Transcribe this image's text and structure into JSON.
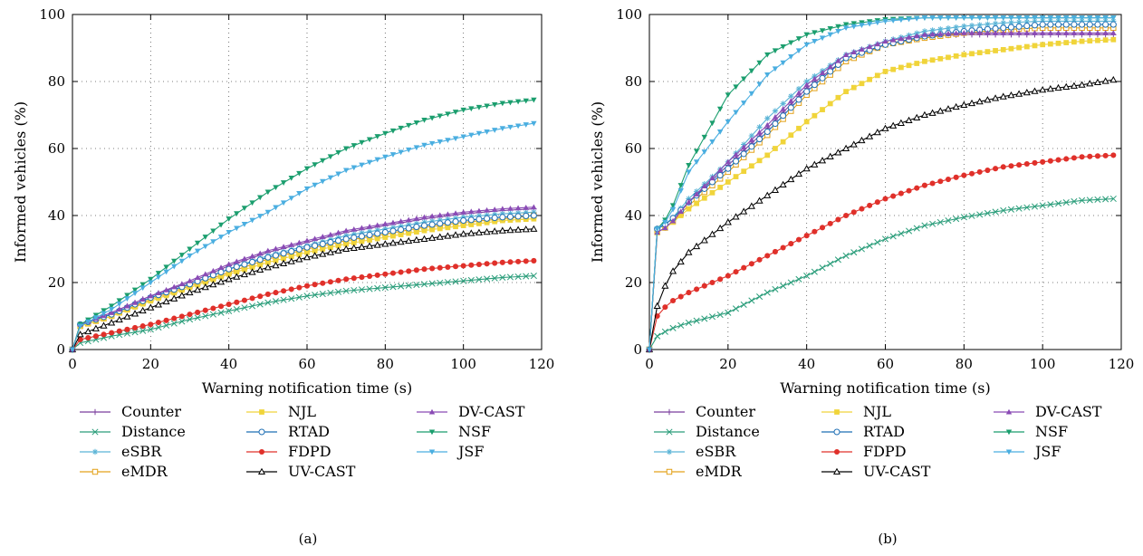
{
  "chart_data": [
    {
      "type": "line",
      "caption": "(a)",
      "xlabel": "Warning notification time (s)",
      "ylabel": "Informed vehicles (%)",
      "xlim": [
        0,
        120
      ],
      "ylim": [
        0,
        100
      ],
      "xticks": [
        0,
        20,
        40,
        60,
        80,
        100,
        120
      ],
      "yticks": [
        0,
        20,
        40,
        60,
        80,
        100
      ],
      "grid": true,
      "legend": "below",
      "x": [
        0,
        2,
        10,
        20,
        30,
        40,
        50,
        60,
        70,
        80,
        90,
        100,
        110,
        118
      ],
      "series": [
        {
          "name": "Counter",
          "color": "#7b3f9e",
          "marker": "plus",
          "values": [
            0,
            7.5,
            11,
            16,
            20,
            25,
            29,
            32,
            35,
            37,
            39,
            40.5,
            41.5,
            42
          ]
        },
        {
          "name": "Distance",
          "color": "#2a9d7a",
          "marker": "x",
          "values": [
            0,
            2,
            4,
            6,
            9,
            11.5,
            14,
            16,
            17.5,
            18.5,
            19.5,
            20.5,
            21.5,
            22
          ]
        },
        {
          "name": "eSBR",
          "color": "#5ab4d6",
          "marker": "asterisk",
          "values": [
            0,
            7.5,
            10.5,
            15.5,
            19.5,
            24,
            28,
            31,
            34,
            36,
            38,
            39.5,
            40.5,
            41
          ]
        },
        {
          "name": "eMDR",
          "color": "#e3a21a",
          "marker": "square",
          "values": [
            0,
            7,
            10,
            15,
            19,
            23,
            27,
            30,
            32.5,
            34.5,
            36.5,
            38,
            39,
            40
          ]
        },
        {
          "name": "NJL",
          "color": "#f0d43a",
          "marker": "fsquare",
          "values": [
            0,
            7,
            10,
            14.5,
            18.5,
            22.5,
            26,
            29,
            31.5,
            33.5,
            35.5,
            37,
            38.5,
            39
          ]
        },
        {
          "name": "RTAD",
          "color": "#1f6fb4",
          "marker": "circle",
          "values": [
            0,
            7.5,
            10.5,
            15.5,
            19.5,
            24,
            27.5,
            30.5,
            33,
            35,
            37,
            38.5,
            39.5,
            40
          ]
        },
        {
          "name": "FDPD",
          "color": "#e0302a",
          "marker": "fcircle",
          "values": [
            0,
            3,
            5,
            7.5,
            10.5,
            13.5,
            16.5,
            19,
            21,
            22.5,
            24,
            25,
            26,
            26.5
          ]
        },
        {
          "name": "UV-CAST",
          "color": "#000000",
          "marker": "triangle",
          "values": [
            0,
            4.5,
            8,
            12.5,
            17,
            21,
            24.5,
            27.5,
            30,
            31.5,
            33,
            34.5,
            35.5,
            36
          ]
        },
        {
          "name": "DV-CAST",
          "color": "#8a4bb5",
          "marker": "ftriangle",
          "values": [
            0,
            7.5,
            11,
            16,
            20.5,
            25.5,
            29.5,
            32.5,
            35.5,
            37.5,
            39.5,
            41,
            42,
            42.5
          ]
        },
        {
          "name": "NSF",
          "color": "#1b9e6e",
          "marker": "fdown",
          "values": [
            0,
            7.5,
            13,
            21,
            30,
            39,
            47,
            54,
            60,
            64.5,
            68.5,
            71.5,
            73.5,
            74.5
          ]
        },
        {
          "name": "JSF",
          "color": "#4aaee0",
          "marker": "fdown",
          "values": [
            0,
            7,
            12,
            20,
            28,
            35,
            41,
            48,
            53.5,
            57.5,
            61,
            63.5,
            66,
            67.5
          ]
        }
      ]
    },
    {
      "type": "line",
      "caption": "(b)",
      "xlabel": "Warning notification time (s)",
      "ylabel": "Informed vehicles (%)",
      "xlim": [
        0,
        120
      ],
      "ylim": [
        0,
        100
      ],
      "xticks": [
        0,
        20,
        40,
        60,
        80,
        100,
        120
      ],
      "yticks": [
        0,
        20,
        40,
        60,
        80,
        100
      ],
      "grid": true,
      "legend": "below",
      "x": [
        0,
        2,
        5,
        10,
        20,
        30,
        40,
        50,
        60,
        70,
        80,
        90,
        100,
        110,
        118
      ],
      "series": [
        {
          "name": "Counter",
          "color": "#7b3f9e",
          "marker": "plus",
          "values": [
            0,
            35,
            37,
            44,
            55,
            66,
            78,
            87,
            91,
            93.5,
            94,
            94,
            94,
            94,
            94
          ]
        },
        {
          "name": "Distance",
          "color": "#2a9d7a",
          "marker": "x",
          "values": [
            0,
            4,
            6,
            8,
            11,
            17,
            22,
            28,
            33,
            37,
            39.5,
            41.5,
            43,
            44.5,
            45
          ]
        },
        {
          "name": "eSBR",
          "color": "#5ab4d6",
          "marker": "asterisk",
          "values": [
            0,
            36,
            38,
            45,
            56,
            69,
            80,
            88,
            92,
            95,
            96.5,
            97.5,
            98,
            98,
            98
          ]
        },
        {
          "name": "eMDR",
          "color": "#e3a21a",
          "marker": "square",
          "values": [
            0,
            35,
            37,
            43,
            53,
            64,
            76,
            86,
            91,
            93,
            94.5,
            95.5,
            96,
            96,
            96
          ]
        },
        {
          "name": "NJL",
          "color": "#f0d43a",
          "marker": "fsquare",
          "values": [
            0,
            35,
            37,
            42,
            50,
            58,
            68,
            77,
            83,
            86,
            88,
            89.5,
            91,
            92,
            92.5
          ]
        },
        {
          "name": "RTAD",
          "color": "#1f6fb4",
          "marker": "circle",
          "values": [
            0,
            36,
            38,
            44,
            54,
            65,
            77,
            87,
            91,
            93.5,
            95,
            96,
            97,
            97,
            97
          ]
        },
        {
          "name": "FDPD",
          "color": "#e0302a",
          "marker": "fcircle",
          "values": [
            0,
            10,
            14,
            17,
            22,
            28,
            34,
            40,
            45,
            49,
            52,
            54.5,
            56,
            57.5,
            58
          ]
        },
        {
          "name": "UV-CAST",
          "color": "#000000",
          "marker": "triangle",
          "values": [
            0,
            13,
            22,
            29,
            38,
            46,
            54,
            60,
            66,
            70,
            73,
            75.5,
            77.5,
            79,
            80.5
          ]
        },
        {
          "name": "DV-CAST",
          "color": "#8a4bb5",
          "marker": "ftriangle",
          "values": [
            0,
            35,
            37,
            44,
            56,
            67,
            79,
            88,
            92,
            94,
            94.5,
            94.5,
            94.5,
            94.5,
            94.5
          ]
        },
        {
          "name": "NSF",
          "color": "#1b9e6e",
          "marker": "fdown",
          "values": [
            0,
            36,
            40,
            55,
            76,
            88,
            94,
            97,
            98.5,
            99,
            99,
            99,
            99,
            99,
            99
          ]
        },
        {
          "name": "JSF",
          "color": "#4aaee0",
          "marker": "fdown",
          "values": [
            0,
            36,
            39,
            53,
            68,
            82,
            91,
            96,
            98,
            99,
            99,
            99,
            99,
            99,
            99
          ]
        }
      ]
    }
  ]
}
